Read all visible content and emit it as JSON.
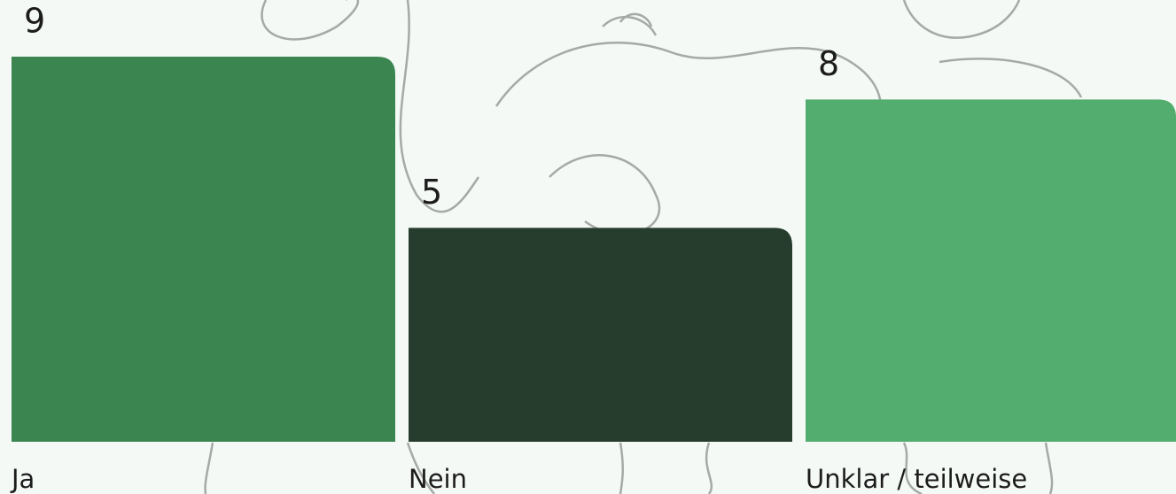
{
  "chart_data": {
    "type": "bar",
    "categories": [
      "Ja",
      "Nein",
      "Unklar / teilweise"
    ],
    "values": [
      9,
      5,
      8
    ],
    "colors": [
      "#3a8550",
      "#263d2e",
      "#52ad6e"
    ],
    "ylim": [
      0,
      9
    ]
  }
}
